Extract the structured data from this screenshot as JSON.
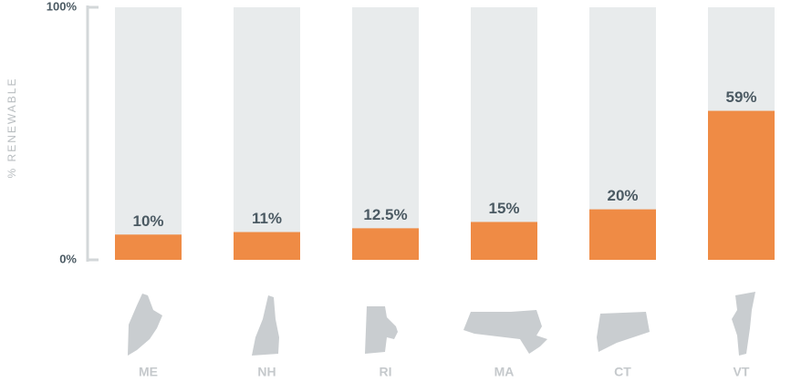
{
  "chart_data": {
    "type": "bar",
    "y_label": "% RENEWABLE",
    "categories": [
      "ME",
      "NH",
      "RI",
      "MA",
      "CT",
      "VT"
    ],
    "values": [
      10,
      11,
      12.5,
      15,
      20,
      59
    ],
    "value_labels": [
      "10%",
      "11%",
      "12.5%",
      "15%",
      "20%",
      "59%"
    ],
    "color": "#ef8b45",
    "track_color": "#e8ebec",
    "ylim": [
      0,
      100
    ],
    "yticks": [
      {
        "value": 0,
        "label": "0%"
      },
      {
        "value": 100,
        "label": "100%"
      }
    ]
  }
}
